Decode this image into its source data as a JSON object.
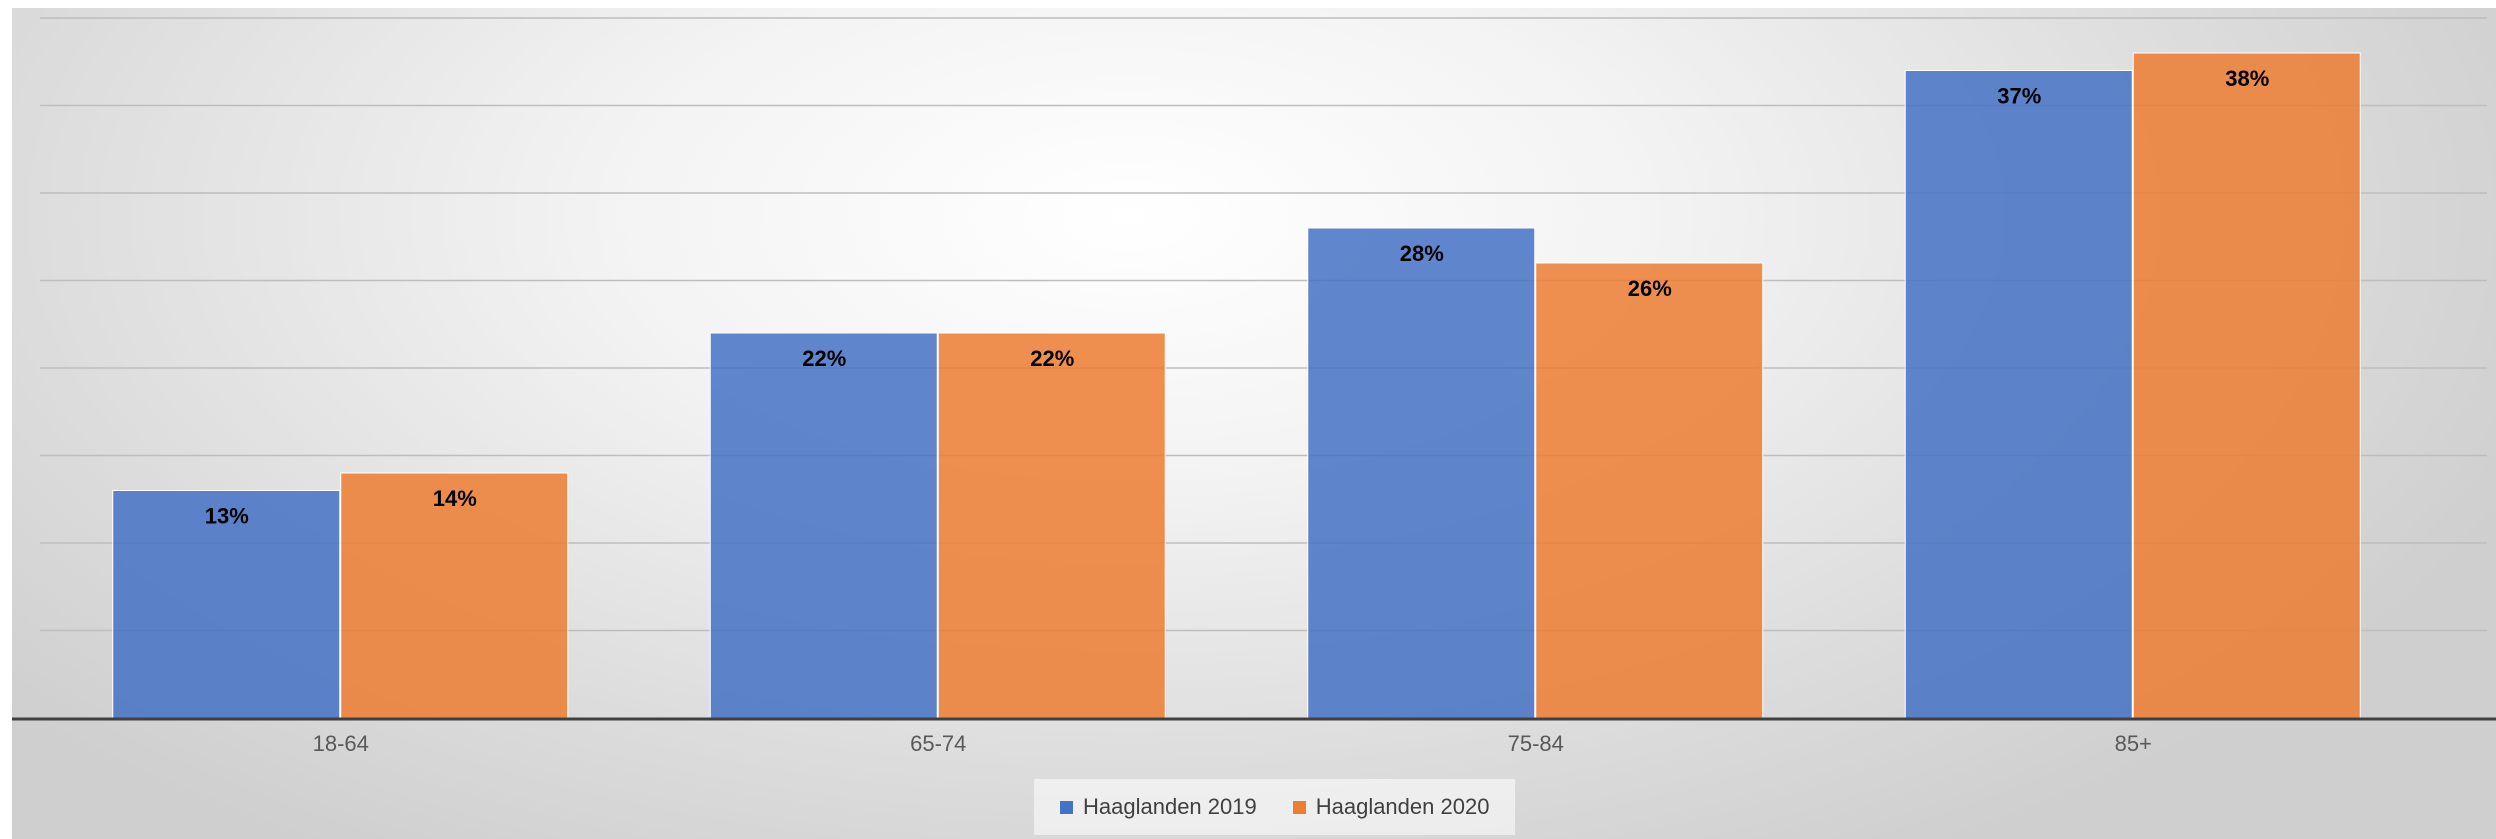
{
  "chart_data": {
    "type": "bar",
    "categories": [
      "18-64",
      "65-74",
      "75-84",
      "85+"
    ],
    "series": [
      {
        "name": "Haaglanden 2019",
        "values": [
          13,
          22,
          28,
          37
        ],
        "labels": [
          "13%",
          "22%",
          "28%",
          "37%"
        ],
        "color": "#4472c4"
      },
      {
        "name": "Haaglanden 2020",
        "values": [
          14,
          22,
          26,
          38
        ],
        "labels": [
          "14%",
          "22%",
          "26%",
          "38%"
        ],
        "color": "#ed7d31"
      }
    ],
    "ylim": [
      0,
      40
    ],
    "grid": true,
    "legend_position": "bottom"
  }
}
